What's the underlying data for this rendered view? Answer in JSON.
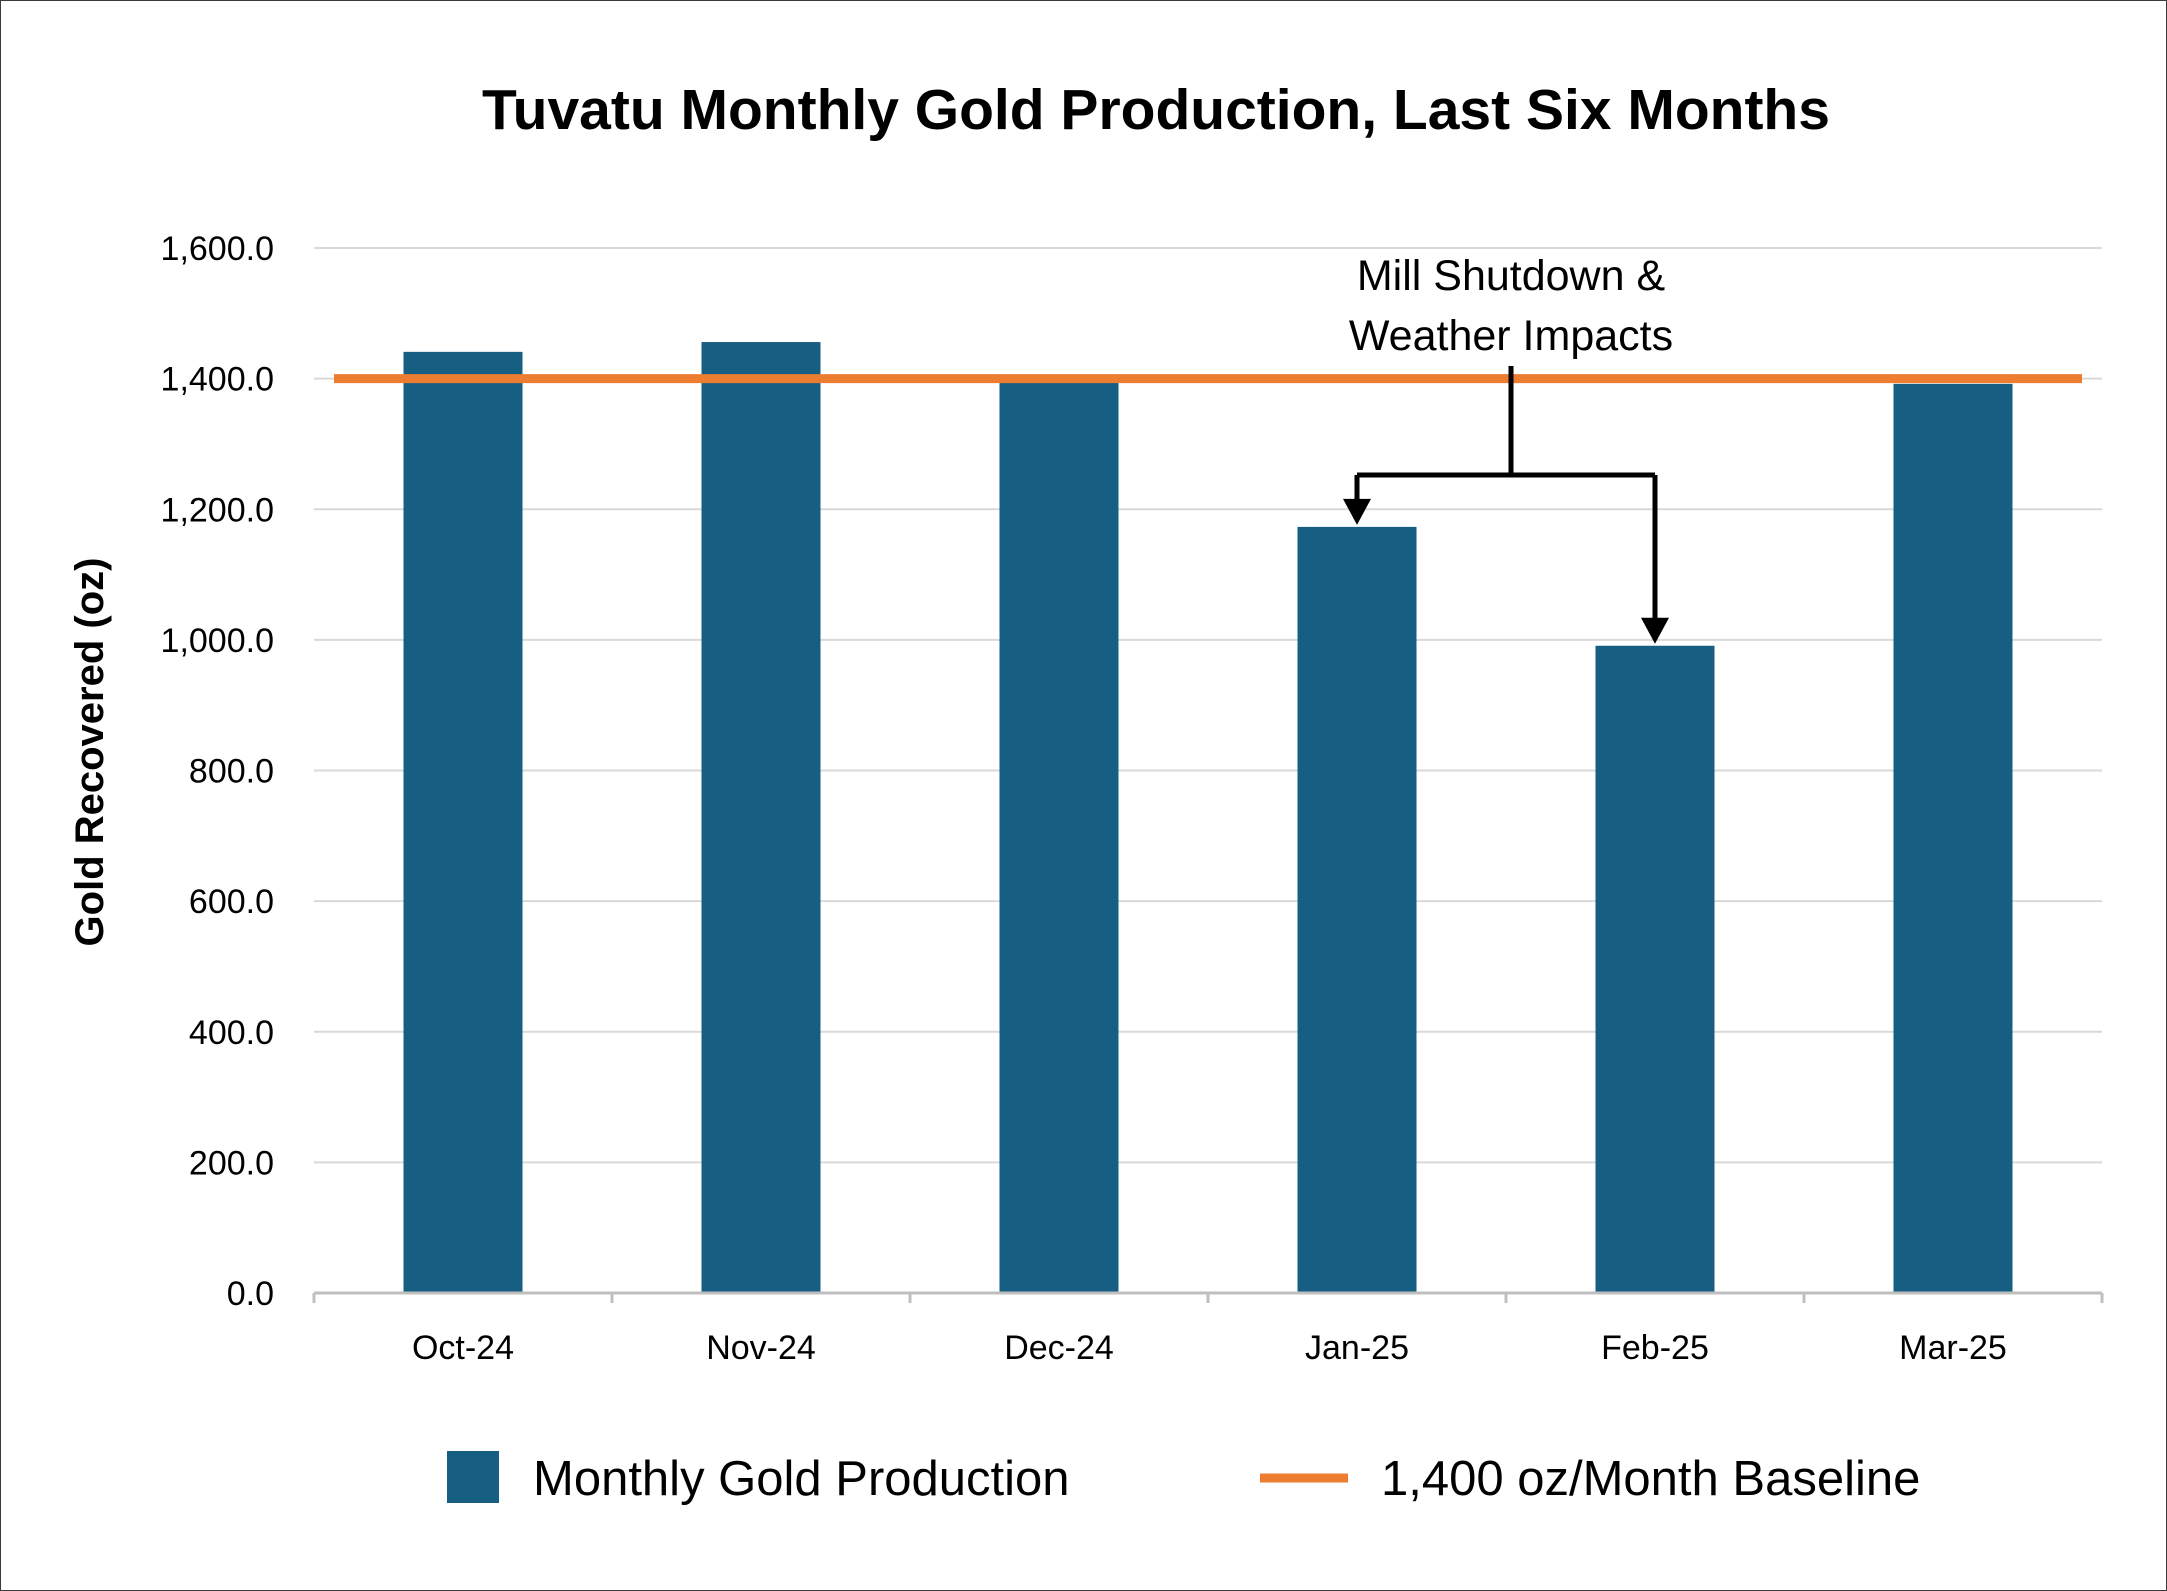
{
  "chart_data": {
    "type": "bar",
    "title": "Tuvatu Monthly Gold Production, Last Six Months",
    "xlabel": "",
    "ylabel": "Gold Recovered (oz)",
    "categories": [
      "Oct-24",
      "Nov-24",
      "Dec-24",
      "Jan-25",
      "Feb-25",
      "Mar-25"
    ],
    "series": [
      {
        "name": "Monthly Gold Production",
        "values": [
          1441,
          1456,
          1400,
          1173,
          991,
          1392
        ],
        "color": "#175f82"
      }
    ],
    "baseline": {
      "name": "1,400 oz/Month Baseline",
      "value": 1400,
      "color": "#ed7d31"
    },
    "ylim": [
      0,
      1600
    ],
    "y_ticks": [
      "0.0",
      "200.0",
      "400.0",
      "600.0",
      "800.0",
      "1,000.0",
      "1,200.0",
      "1,400.0",
      "1,600.0"
    ],
    "annotation": {
      "lines": [
        "Mill Shutdown &",
        "Weather Impacts"
      ],
      "targets": [
        "Jan-25",
        "Feb-25"
      ]
    },
    "grid": true,
    "legend_position": "bottom"
  }
}
